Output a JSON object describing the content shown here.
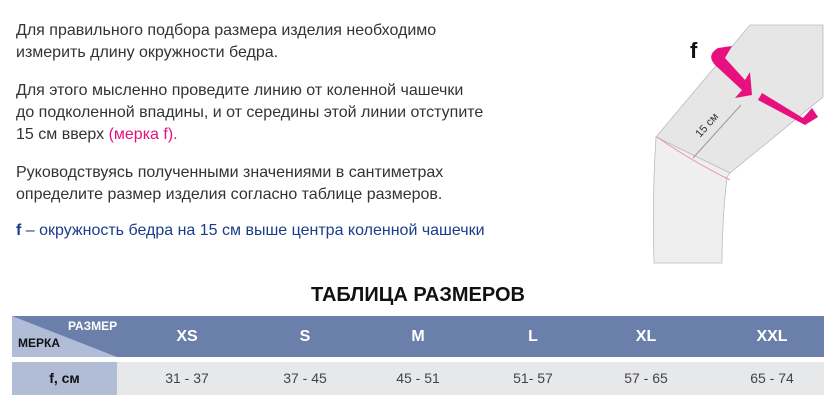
{
  "text": {
    "p1": [
      "Для правильного подбора размера изделия необходимо",
      "измерить длину окружности бедра."
    ],
    "p2": [
      "Для этого мысленно проведите линию от коленной чашечки",
      "до подколенной впадины, и от середины этой линии отступите"
    ],
    "p2_last": "15 см вверх ",
    "p2_pink": "(мерка f).",
    "p3": [
      "Руководствуясь полученными значениями в сантиметрах",
      "определите размер изделия согласно таблице размеров."
    ],
    "f_label": "f",
    "f_desc": " – окружность бедра на 15 см выше центра коленной чашечки"
  },
  "illustration": {
    "f": "f",
    "distance": "15 см"
  },
  "table": {
    "title": "ТАБЛИЦА РАЗМЕРОВ",
    "corner_top": "РАЗМЕР",
    "corner_bottom": "МЕРКА",
    "row_label": "f, см",
    "sizes": [
      "XS",
      "S",
      "M",
      "L",
      "XL",
      "XXL"
    ],
    "values": [
      "31 - 37",
      "37 - 45",
      "45 - 51",
      "51- 57",
      "57 - 65",
      "65 - 74"
    ]
  },
  "colors": {
    "accent": "#e6117e",
    "header": "#6a7faa",
    "label": "#b1bdd6",
    "text_blue": "#1a3d8a"
  }
}
